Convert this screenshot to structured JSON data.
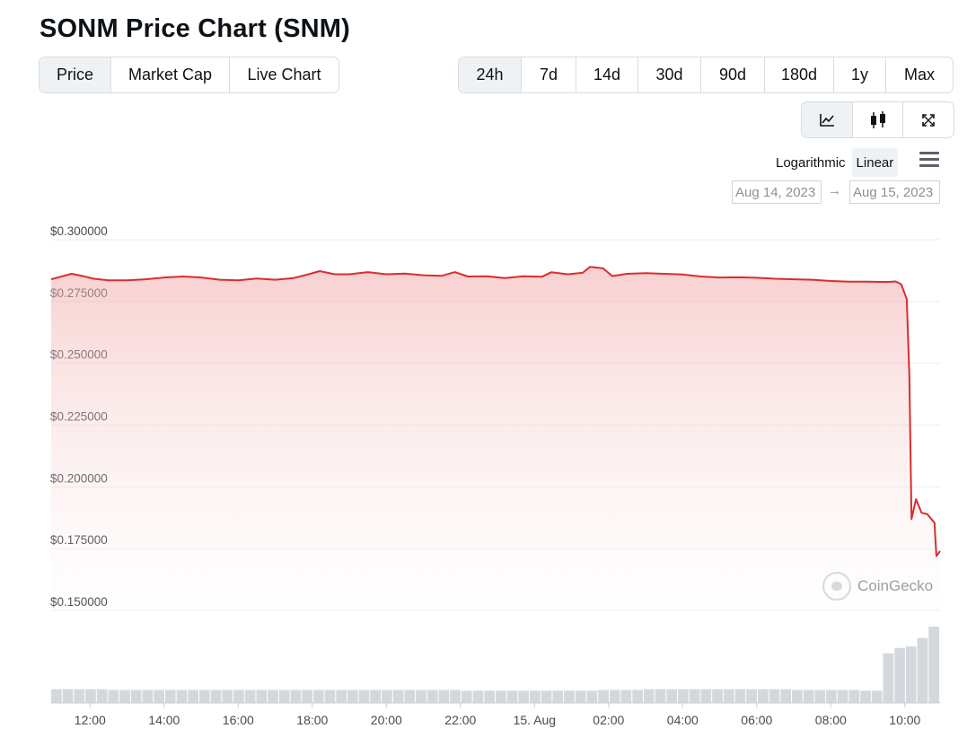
{
  "title": "SONM Price Chart (SNM)",
  "type_tabs": [
    {
      "label": "Price",
      "active": true
    },
    {
      "label": "Market Cap",
      "active": false
    },
    {
      "label": "Live Chart",
      "active": false
    }
  ],
  "range_tabs": [
    {
      "label": "24h",
      "active": true
    },
    {
      "label": "7d",
      "active": false
    },
    {
      "label": "14d",
      "active": false
    },
    {
      "label": "30d",
      "active": false
    },
    {
      "label": "90d",
      "active": false
    },
    {
      "label": "180d",
      "active": false
    },
    {
      "label": "1y",
      "active": false
    },
    {
      "label": "Max",
      "active": false
    }
  ],
  "view_tabs": [
    {
      "icon": "line-chart-icon",
      "active": true
    },
    {
      "icon": "candlestick-icon",
      "active": false
    },
    {
      "icon": "fullscreen-icon",
      "active": false
    }
  ],
  "scale": {
    "logarithmic": "Logarithmic",
    "linear": "Linear",
    "active": "linear"
  },
  "date_range": {
    "from": "Aug 14, 2023",
    "arrow": "→",
    "to": "Aug 15, 2023"
  },
  "watermark": "CoinGecko",
  "colors": {
    "line": "#dc2c2c",
    "volume": "#d4d8dd",
    "active_tab_bg": "#eff2f5"
  },
  "chart_data": {
    "type": "area",
    "title": "",
    "xlabel": "",
    "ylabel": "",
    "ylim": [
      0.15,
      0.3
    ],
    "y_ticks": [
      "$0.300000",
      "$0.275000",
      "$0.250000",
      "$0.225000",
      "$0.200000",
      "$0.175000",
      "$0.150000"
    ],
    "x_ticks": [
      "12:00",
      "14:00",
      "16:00",
      "18:00",
      "20:00",
      "22:00",
      "15. Aug",
      "02:00",
      "04:00",
      "06:00",
      "08:00",
      "10:00"
    ],
    "x_tick_hours": [
      12,
      14,
      16,
      18,
      20,
      22,
      24,
      26,
      28,
      30,
      32,
      34
    ],
    "xlim_hours": [
      10.95,
      34.95
    ],
    "grid": true,
    "series": [
      {
        "points": [
          [
            10.95,
            0.284
          ],
          [
            11.2,
            0.285
          ],
          [
            11.5,
            0.2862
          ],
          [
            11.8,
            0.2853
          ],
          [
            12.1,
            0.2842
          ],
          [
            12.5,
            0.2836
          ],
          [
            13.0,
            0.2836
          ],
          [
            13.5,
            0.284
          ],
          [
            14.0,
            0.2847
          ],
          [
            14.5,
            0.2851
          ],
          [
            15.0,
            0.2847
          ],
          [
            15.5,
            0.2838
          ],
          [
            16.0,
            0.2836
          ],
          [
            16.5,
            0.2843
          ],
          [
            17.0,
            0.2838
          ],
          [
            17.5,
            0.2845
          ],
          [
            17.9,
            0.286
          ],
          [
            18.2,
            0.2873
          ],
          [
            18.6,
            0.286
          ],
          [
            19.0,
            0.286
          ],
          [
            19.5,
            0.2869
          ],
          [
            20.0,
            0.286
          ],
          [
            20.5,
            0.2863
          ],
          [
            21.0,
            0.2856
          ],
          [
            21.5,
            0.2854
          ],
          [
            21.85,
            0.2869
          ],
          [
            22.2,
            0.2851
          ],
          [
            22.7,
            0.2852
          ],
          [
            23.2,
            0.2845
          ],
          [
            23.7,
            0.2852
          ],
          [
            24.2,
            0.285
          ],
          [
            24.45,
            0.2868
          ],
          [
            24.9,
            0.286
          ],
          [
            25.3,
            0.2866
          ],
          [
            25.5,
            0.289
          ],
          [
            25.85,
            0.2884
          ],
          [
            26.1,
            0.2853
          ],
          [
            26.5,
            0.2862
          ],
          [
            27.0,
            0.2865
          ],
          [
            27.5,
            0.2862
          ],
          [
            28.0,
            0.2859
          ],
          [
            28.5,
            0.2851
          ],
          [
            29.0,
            0.2847
          ],
          [
            29.5,
            0.2848
          ],
          [
            30.0,
            0.2846
          ],
          [
            30.5,
            0.2842
          ],
          [
            31.0,
            0.284
          ],
          [
            31.5,
            0.2838
          ],
          [
            32.0,
            0.2833
          ],
          [
            32.5,
            0.283
          ],
          [
            33.0,
            0.283
          ],
          [
            33.5,
            0.2829
          ],
          [
            33.75,
            0.2831
          ],
          [
            33.9,
            0.282
          ],
          [
            34.05,
            0.276
          ],
          [
            34.12,
            0.245
          ],
          [
            34.18,
            0.187
          ],
          [
            34.3,
            0.195
          ],
          [
            34.45,
            0.1895
          ],
          [
            34.6,
            0.189
          ],
          [
            34.8,
            0.1855
          ],
          [
            34.85,
            0.172
          ],
          [
            34.95,
            0.174
          ]
        ]
      }
    ],
    "volume": {
      "note_scale": "relative",
      "values": [
        0.18,
        0.18,
        0.18,
        0.18,
        0.18,
        0.17,
        0.17,
        0.17,
        0.17,
        0.17,
        0.17,
        0.17,
        0.17,
        0.17,
        0.17,
        0.17,
        0.17,
        0.17,
        0.17,
        0.17,
        0.17,
        0.17,
        0.17,
        0.17,
        0.17,
        0.17,
        0.17,
        0.17,
        0.17,
        0.17,
        0.17,
        0.17,
        0.17,
        0.17,
        0.17,
        0.17,
        0.16,
        0.16,
        0.16,
        0.16,
        0.16,
        0.16,
        0.16,
        0.16,
        0.16,
        0.16,
        0.16,
        0.16,
        0.17,
        0.17,
        0.17,
        0.17,
        0.18,
        0.18,
        0.18,
        0.18,
        0.18,
        0.18,
        0.18,
        0.18,
        0.18,
        0.18,
        0.18,
        0.18,
        0.18,
        0.17,
        0.17,
        0.17,
        0.17,
        0.17,
        0.17,
        0.16,
        0.16,
        0.65,
        0.72,
        0.74,
        0.85,
        1.0
      ]
    }
  }
}
